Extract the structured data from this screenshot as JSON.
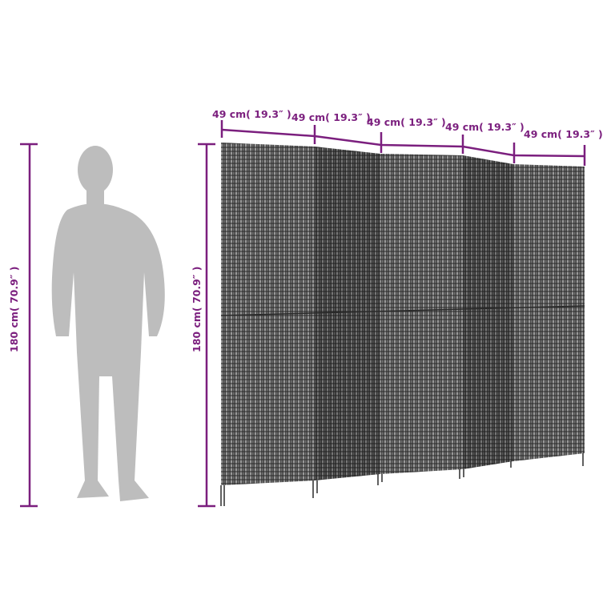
{
  "colors": {
    "dimension": "#7b1f7e",
    "silhouette": "#bdbdbd",
    "wicker_dark": "#3a3a3a",
    "wicker_light": "#8c8c8c"
  },
  "height_labels": {
    "person": "180 cm( 70.9″ )",
    "screen": "180 cm( 70.9″ )"
  },
  "width_labels": [
    "49 cm( 19.3″ )",
    "49 cm( 19.3″ )",
    "49 cm( 19.3″ )",
    "49 cm( 19.3″ )",
    "49 cm( 19.3″ )"
  ],
  "figure": {
    "icon": "person-silhouette",
    "product": "5-panel wicker room divider"
  }
}
